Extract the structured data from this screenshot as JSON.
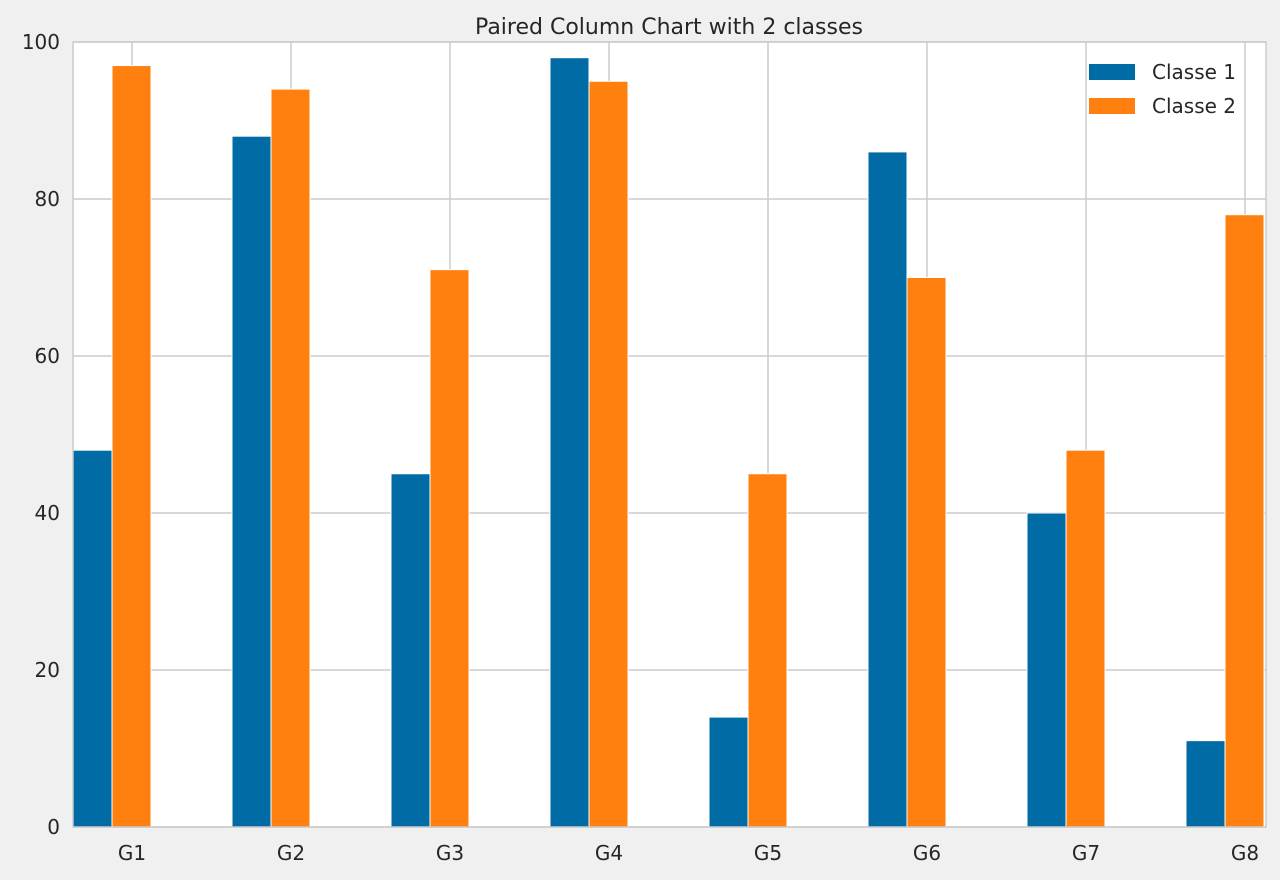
{
  "chart_data": {
    "type": "bar",
    "title": "Paired Column Chart with 2 classes",
    "categories": [
      "G1",
      "G2",
      "G3",
      "G4",
      "G5",
      "G6",
      "G7",
      "G8"
    ],
    "series": [
      {
        "name": "Classe 1",
        "color": "#006ba4",
        "values": [
          48,
          88,
          45,
          98,
          14,
          86,
          40,
          11
        ]
      },
      {
        "name": "Classe 2",
        "color": "#ff800e",
        "values": [
          97,
          94,
          71,
          95,
          45,
          70,
          48,
          78
        ]
      }
    ],
    "ylim": [
      0,
      100
    ],
    "yticks": [
      0,
      20,
      40,
      60,
      80,
      100
    ],
    "grid": true,
    "legend": "top-right",
    "style": {
      "plot_background": "#ffffff",
      "figure_background": "#f0f0f0",
      "grid_color": "#cbcbcb",
      "text_color": "#262626"
    }
  }
}
